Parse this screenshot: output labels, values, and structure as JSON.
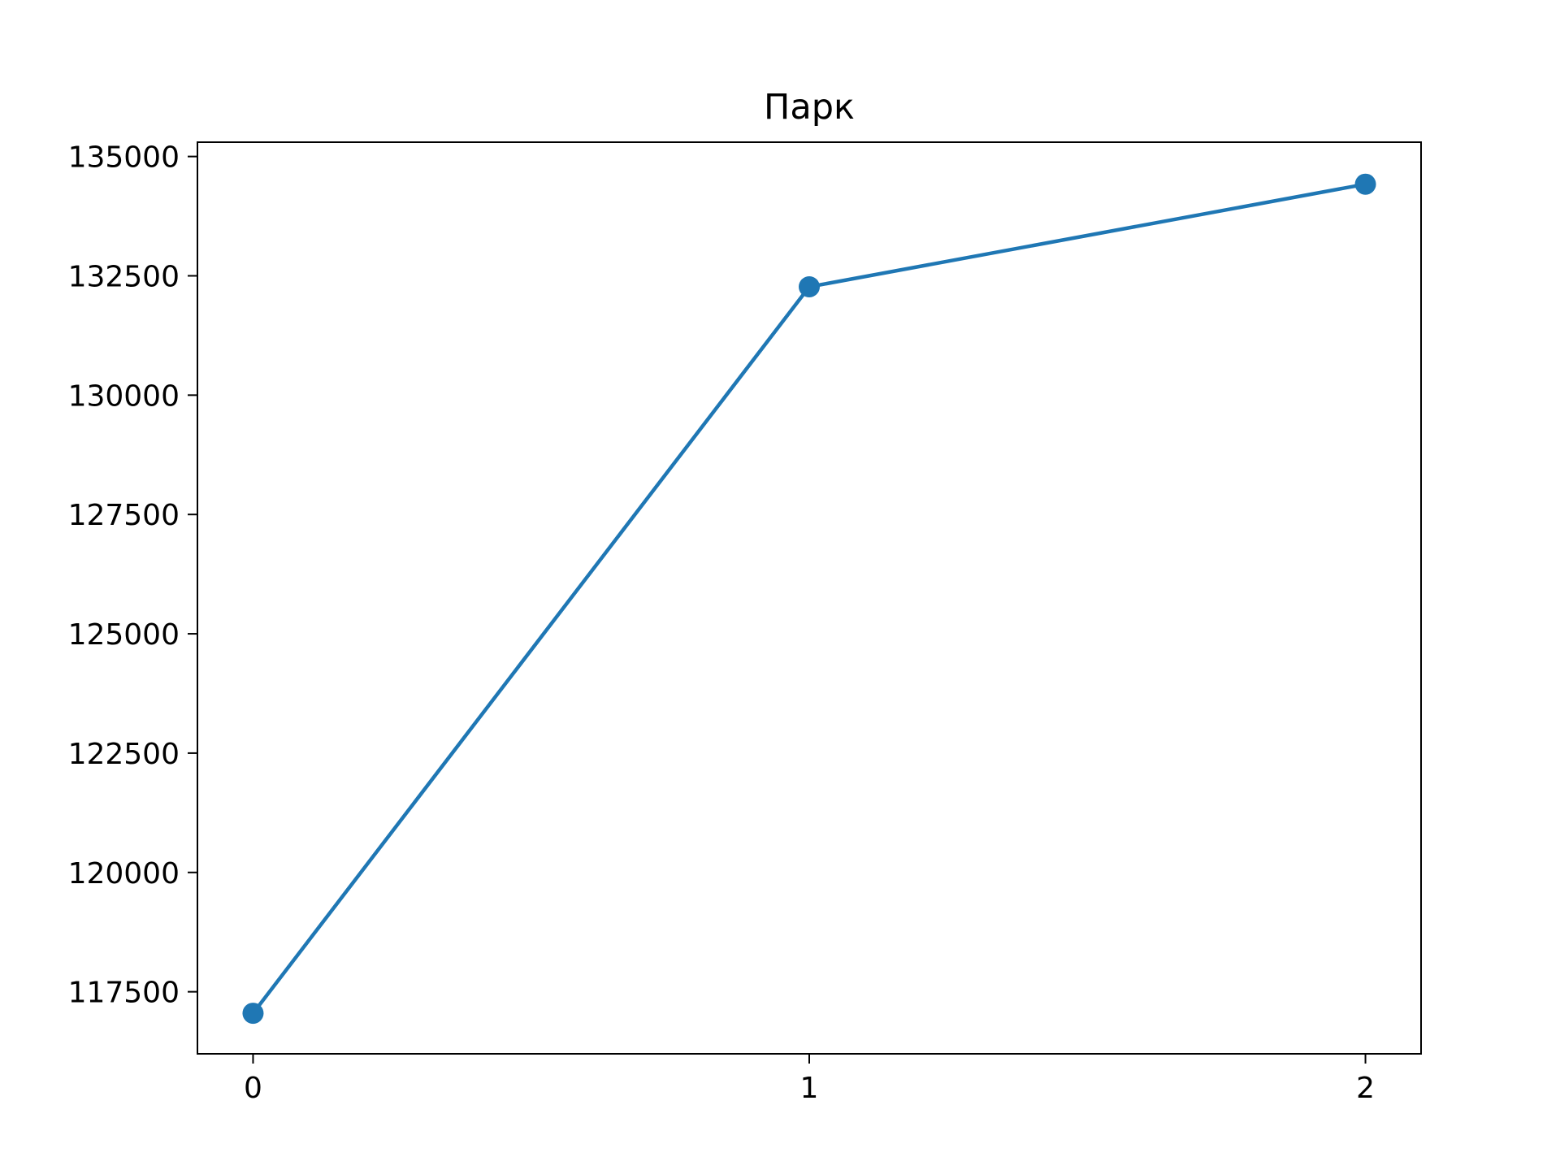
{
  "chart_data": {
    "type": "line",
    "title": "Парк",
    "xlabel": "",
    "ylabel": "",
    "x": [
      0,
      1,
      2
    ],
    "series": [
      {
        "name": "Парк",
        "values": [
          117050,
          132270,
          134420
        ],
        "color": "#1f77b4",
        "marker": "circle"
      }
    ],
    "xticks": [
      0,
      1,
      2
    ],
    "xtick_labels": [
      "0",
      "1",
      "2"
    ],
    "yticks": [
      117500,
      120000,
      122500,
      125000,
      127500,
      130000,
      132500,
      135000
    ],
    "ytick_labels": [
      "117500",
      "120000",
      "122500",
      "125000",
      "127500",
      "130000",
      "132500",
      "135000"
    ],
    "xlim": [
      -0.1,
      2.1
    ],
    "ylim": [
      116200,
      135300
    ],
    "grid": false,
    "legend": "none"
  }
}
